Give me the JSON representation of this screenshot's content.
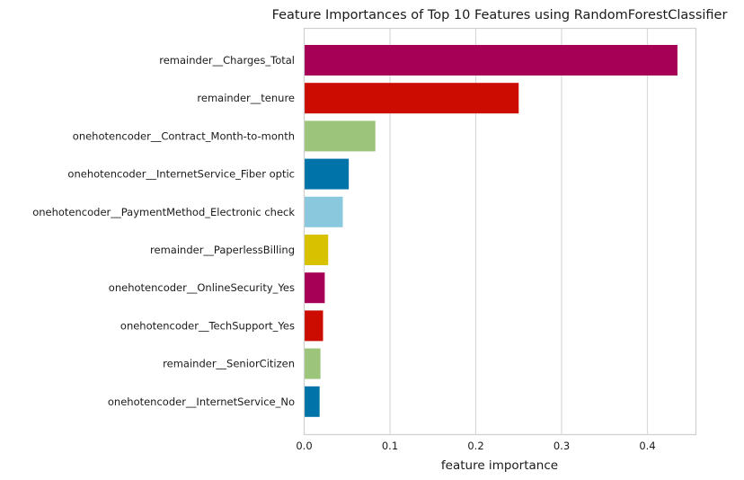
{
  "chart_data": {
    "type": "bar",
    "orientation": "horizontal",
    "title": "Feature Importances of Top 10 Features using RandomForestClassifier",
    "xlabel": "feature importance",
    "ylabel": "",
    "xlim": [
      0,
      0.46
    ],
    "xticks": [
      0.0,
      0.1,
      0.2,
      0.3,
      0.4
    ],
    "xtick_labels": [
      "0.0",
      "0.1",
      "0.2",
      "0.3",
      "0.4"
    ],
    "grid": true,
    "categories": [
      "remainder__Charges_Total",
      "remainder__tenure",
      "onehotencoder__Contract_Month-to-month",
      "onehotencoder__InternetService_Fiber optic",
      "onehotencoder__PaymentMethod_Electronic check",
      "remainder__PaperlessBilling",
      "onehotencoder__OnlineSecurity_Yes",
      "onehotencoder__TechSupport_Yes",
      "remainder__SeniorCitizen",
      "onehotencoder__InternetService_No"
    ],
    "values": [
      0.435,
      0.25,
      0.083,
      0.052,
      0.045,
      0.028,
      0.024,
      0.022,
      0.019,
      0.018
    ],
    "colors": [
      "#a50056",
      "#cc0c00",
      "#9dc47b",
      "#0073a8",
      "#8ac8de",
      "#d8c200",
      "#a50056",
      "#cc0c00",
      "#9dc47b",
      "#0073a8"
    ]
  }
}
